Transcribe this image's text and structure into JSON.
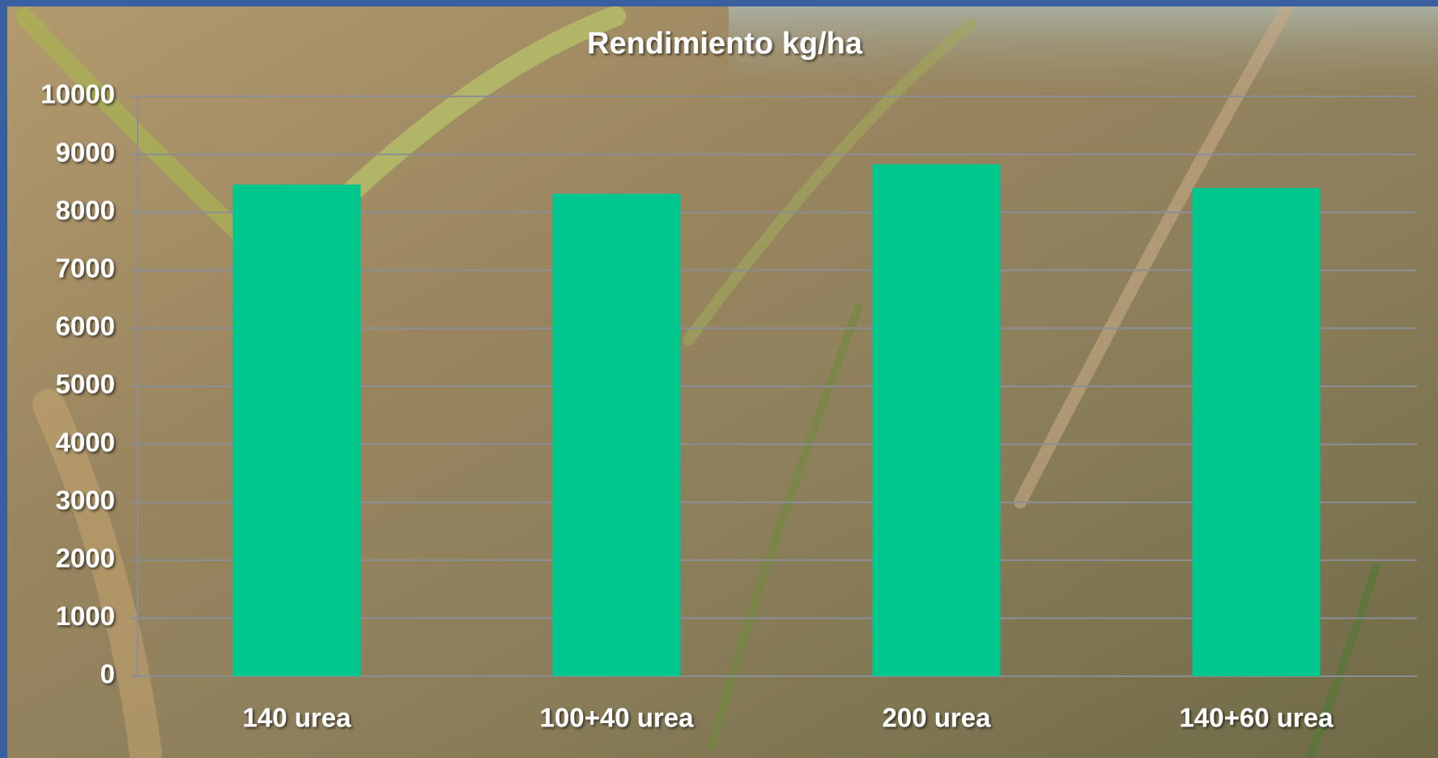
{
  "chart_data": {
    "type": "bar",
    "title": "Rendimiento kg/ha",
    "categories": [
      "140 urea",
      "100+40 urea",
      "200 urea",
      "140+60 urea"
    ],
    "values": [
      8480,
      8320,
      8830,
      8420
    ],
    "color": "#00c78e",
    "ylim": [
      0,
      10000
    ],
    "yticks": [
      0,
      1000,
      2000,
      3000,
      4000,
      5000,
      6000,
      7000,
      8000,
      9000,
      10000
    ],
    "grid": true
  }
}
